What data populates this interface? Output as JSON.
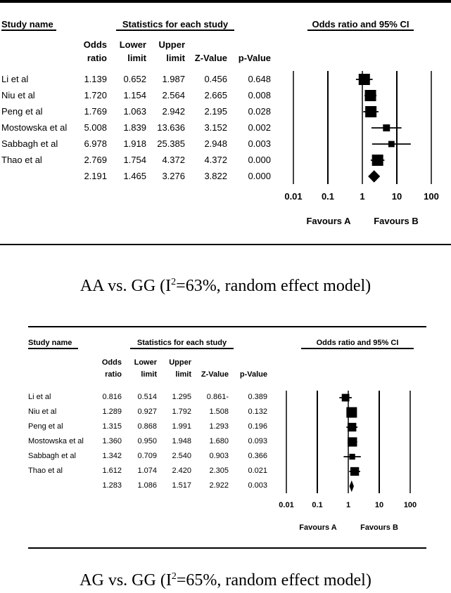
{
  "chart_data": [
    {
      "type": "forest",
      "xscale": "log",
      "xlim": [
        0.01,
        100
      ],
      "xticks": [
        "0.01",
        "0.1",
        "1",
        "10",
        "100"
      ],
      "xtick_values": [
        0.01,
        0.1,
        1,
        10,
        100
      ],
      "headers": {
        "study": "Study name",
        "stats_group": "Statistics for each study",
        "plot_title": "Odds ratio and 95% CI",
        "columns": [
          [
            "Odds",
            "ratio"
          ],
          [
            "Lower",
            "limit"
          ],
          [
            "Upper",
            "limit"
          ],
          [
            "",
            "Z-Value"
          ],
          [
            "",
            "p-Value"
          ]
        ]
      },
      "studies": [
        {
          "name": "Li et al",
          "or": "1.139",
          "lower": "0.652",
          "upper": "1.987",
          "z": "0.456",
          "p": "0.648",
          "weight": 1.0
        },
        {
          "name": "Niu et al",
          "or": "1.720",
          "lower": "1.154",
          "upper": "2.564",
          "z": "2.665",
          "p": "0.008",
          "weight": 1.0
        },
        {
          "name": "Peng et al",
          "or": "1.769",
          "lower": "1.063",
          "upper": "2.942",
          "z": "2.195",
          "p": "0.028",
          "weight": 1.0
        },
        {
          "name": "Mostowska et al",
          "or": "5.008",
          "lower": "1.839",
          "upper": "13.636",
          "z": "3.152",
          "p": "0.002",
          "weight": 0.62
        },
        {
          "name": "Sabbagh et al",
          "or": "6.978",
          "lower": "1.918",
          "upper": "25.385",
          "z": "2.948",
          "p": "0.003",
          "weight": 0.55
        },
        {
          "name": "Thao et al",
          "or": "2.769",
          "lower": "1.754",
          "upper": "4.372",
          "z": "4.372",
          "p": "0.000",
          "weight": 1.0
        }
      ],
      "summary": {
        "name": "",
        "or": "2.191",
        "lower": "1.465",
        "upper": "3.276",
        "z": "3.822",
        "p": "0.000"
      },
      "favours_a": "Favours A",
      "favours_b": "Favours B",
      "caption": {
        "pre": "AA vs. GG (I",
        "sup": "2",
        "post": "=63%, random effect model)"
      }
    },
    {
      "type": "forest",
      "xscale": "log",
      "xlim": [
        0.01,
        100
      ],
      "xticks": [
        "0.01",
        "0.1",
        "1",
        "10",
        "100"
      ],
      "xtick_values": [
        0.01,
        0.1,
        1,
        10,
        100
      ],
      "headers": {
        "study": "Study name",
        "stats_group": "Statistics for each study",
        "plot_title": "Odds ratio and 95% CI",
        "columns": [
          [
            "Odds",
            "ratio"
          ],
          [
            "Lower",
            "limit"
          ],
          [
            "Upper",
            "limit"
          ],
          [
            "",
            "Z-Value"
          ],
          [
            "",
            "p-Value"
          ]
        ]
      },
      "studies": [
        {
          "name": "Li et al",
          "or": "0.816",
          "lower": "0.514",
          "upper": "1.295",
          "z": "0.861-",
          "p": "0.389",
          "weight": 0.72
        },
        {
          "name": "Niu et al",
          "or": "1.289",
          "lower": "0.927",
          "upper": "1.792",
          "z": "1.508",
          "p": "0.132",
          "weight": 1.0
        },
        {
          "name": "Peng et al",
          "or": "1.315",
          "lower": "0.868",
          "upper": "1.991",
          "z": "1.293",
          "p": "0.196",
          "weight": 0.82
        },
        {
          "name": "Mostowska et al",
          "or": "1.360",
          "lower": "0.950",
          "upper": "1.948",
          "z": "1.680",
          "p": "0.093",
          "weight": 0.88
        },
        {
          "name": "Sabbagh et al",
          "or": "1.342",
          "lower": "0.709",
          "upper": "2.540",
          "z": "0.903",
          "p": "0.366",
          "weight": 0.55
        },
        {
          "name": "Thao et al",
          "or": "1.612",
          "lower": "1.074",
          "upper": "2.420",
          "z": "2.305",
          "p": "0.021",
          "weight": 0.82
        }
      ],
      "summary": {
        "name": "",
        "or": "1.283",
        "lower": "1.086",
        "upper": "1.517",
        "z": "2.922",
        "p": "0.003"
      },
      "favours_a": "Favours A",
      "favours_b": "Favours B",
      "caption": {
        "pre": "AG vs. GG (I",
        "sup": "2",
        "post": "=65%, random effect model)"
      }
    }
  ]
}
